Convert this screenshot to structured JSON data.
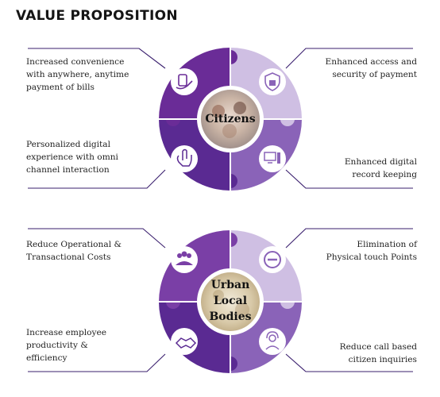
{
  "title": "VALUE PROPOSITION",
  "colors": {
    "dark": "#6a2c97",
    "lighter_dark": "#7a3fa6",
    "light": "#cfbfe3",
    "mid": "#8a63b8",
    "line": "#3a1f6e"
  },
  "top": {
    "center": "Citizens",
    "items": [
      {
        "text": "Increased convenience with anywhere, anytime payment of bills",
        "icon": "hand-payment-icon"
      },
      {
        "text": "Enhanced access and security of payment",
        "icon": "shield-lock-icon"
      },
      {
        "text": "Personalized digital experience with omni channel interaction",
        "icon": "touch-hand-icon"
      },
      {
        "text": "Enhanced digital record keeping",
        "icon": "computer-records-icon"
      }
    ]
  },
  "bottom": {
    "center": "Urban Local Bodies",
    "center_lines": [
      "Urban",
      "Local",
      "Bodies"
    ],
    "items": [
      {
        "text": "Reduce Operational & Transactional Costs",
        "icon": "people-group-icon"
      },
      {
        "text": "Elimination of Physical touch Points",
        "icon": "no-entry-icon"
      },
      {
        "text": "Increase employee productivity & efficiency",
        "icon": "handshake-icon"
      },
      {
        "text": "Reduce call based citizen inquiries",
        "icon": "headset-agent-icon"
      }
    ]
  }
}
